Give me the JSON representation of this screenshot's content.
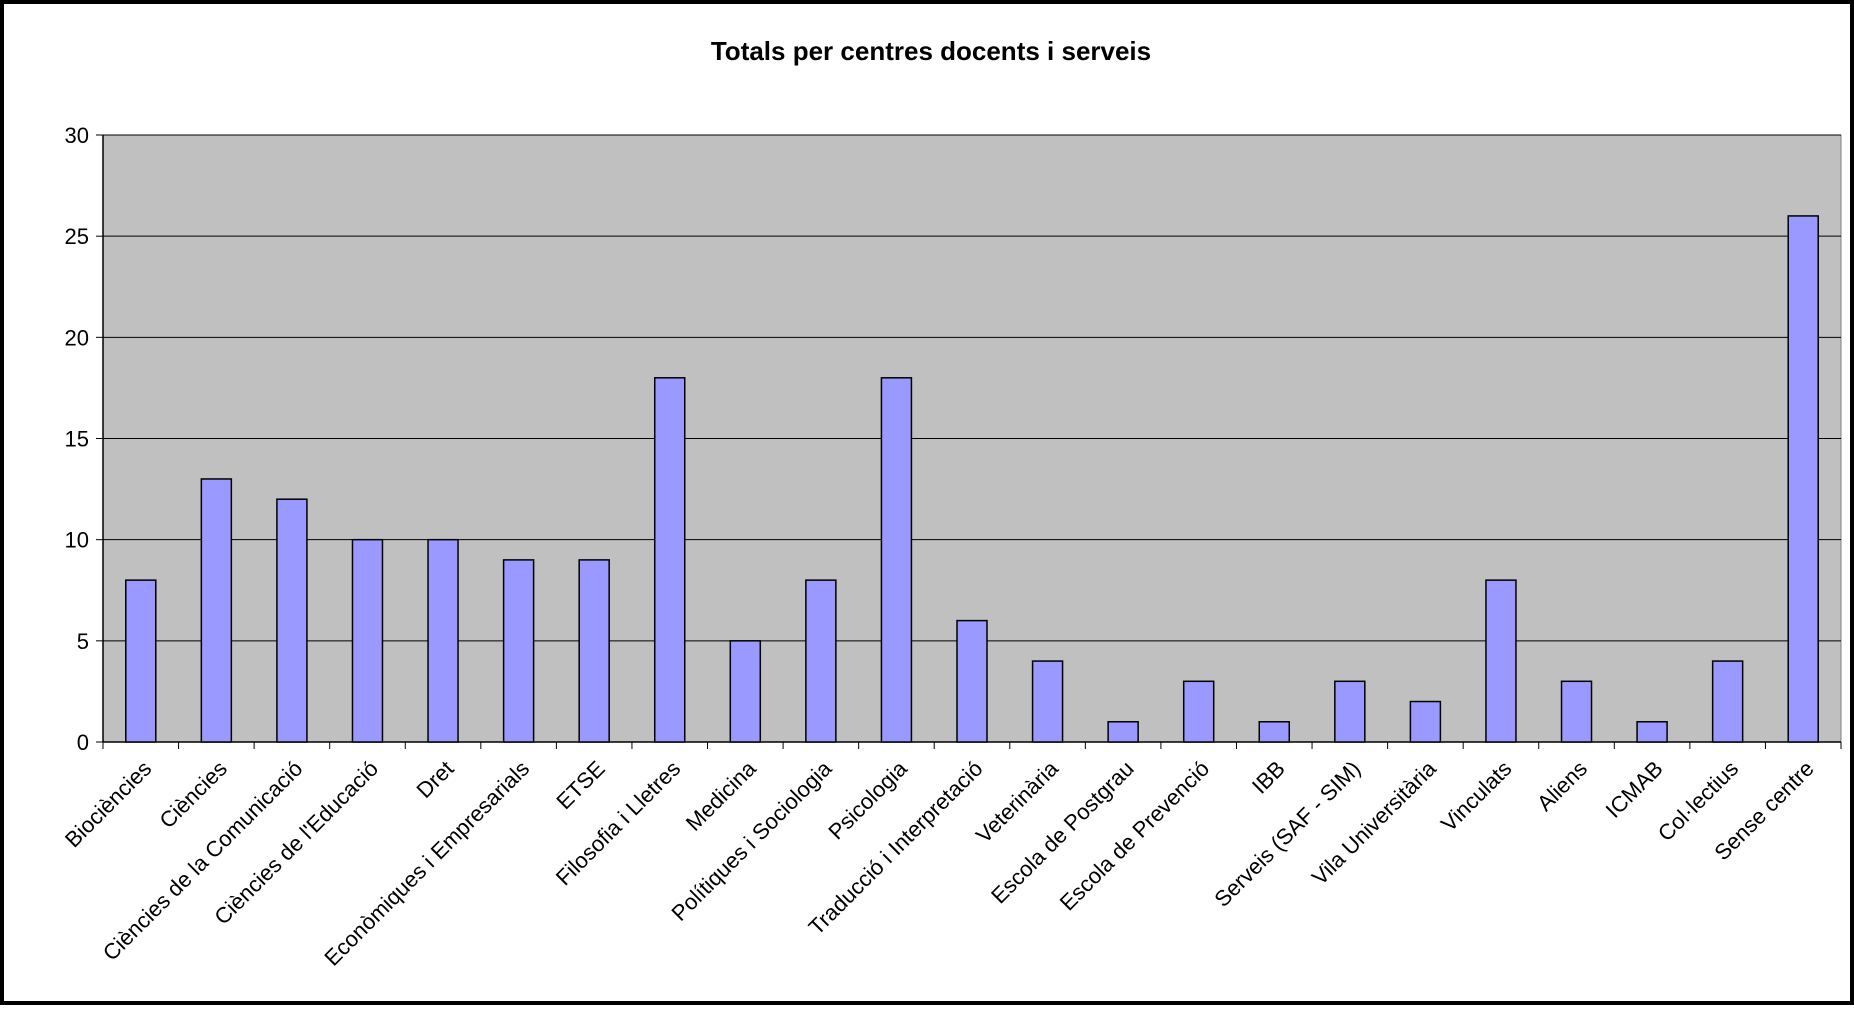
{
  "chart_data": {
    "type": "bar",
    "title": "Totals per centres docents i serveis",
    "xlabel": "",
    "ylabel": "",
    "categories": [
      "Biociències",
      "Ciències",
      "Ciències de la Comunicació",
      "Ciències de l'Educació",
      "Dret",
      "Econòmiques i Empresarials",
      "ETSE",
      "Filosofia i Lletres",
      "Medicina",
      "Polítiques i Sociologia",
      "Psicologia",
      "Traducció i Interpretació",
      "Veterinària",
      "Escola de Postgrau",
      "Escola de Prevenció",
      "IBB",
      "Serveis (SAF - SIM)",
      "Vila Universitària",
      "Vinculats",
      "Aliens",
      "ICMAB",
      "Col·lectius",
      "Sense centre"
    ],
    "values": [
      8,
      13,
      12,
      10,
      10,
      9,
      9,
      18,
      5,
      8,
      18,
      6,
      4,
      1,
      3,
      1,
      3,
      2,
      8,
      3,
      1,
      4,
      26
    ],
    "ylim": [
      0,
      30
    ],
    "yticks": [
      0,
      5,
      10,
      15,
      20,
      25,
      30
    ],
    "grid": true,
    "legend": "none",
    "colors": {
      "bar_fill": "#9999ff",
      "bar_stroke": "#000000",
      "plot_background": "#c0c0c0",
      "gridline": "#000000"
    }
  }
}
